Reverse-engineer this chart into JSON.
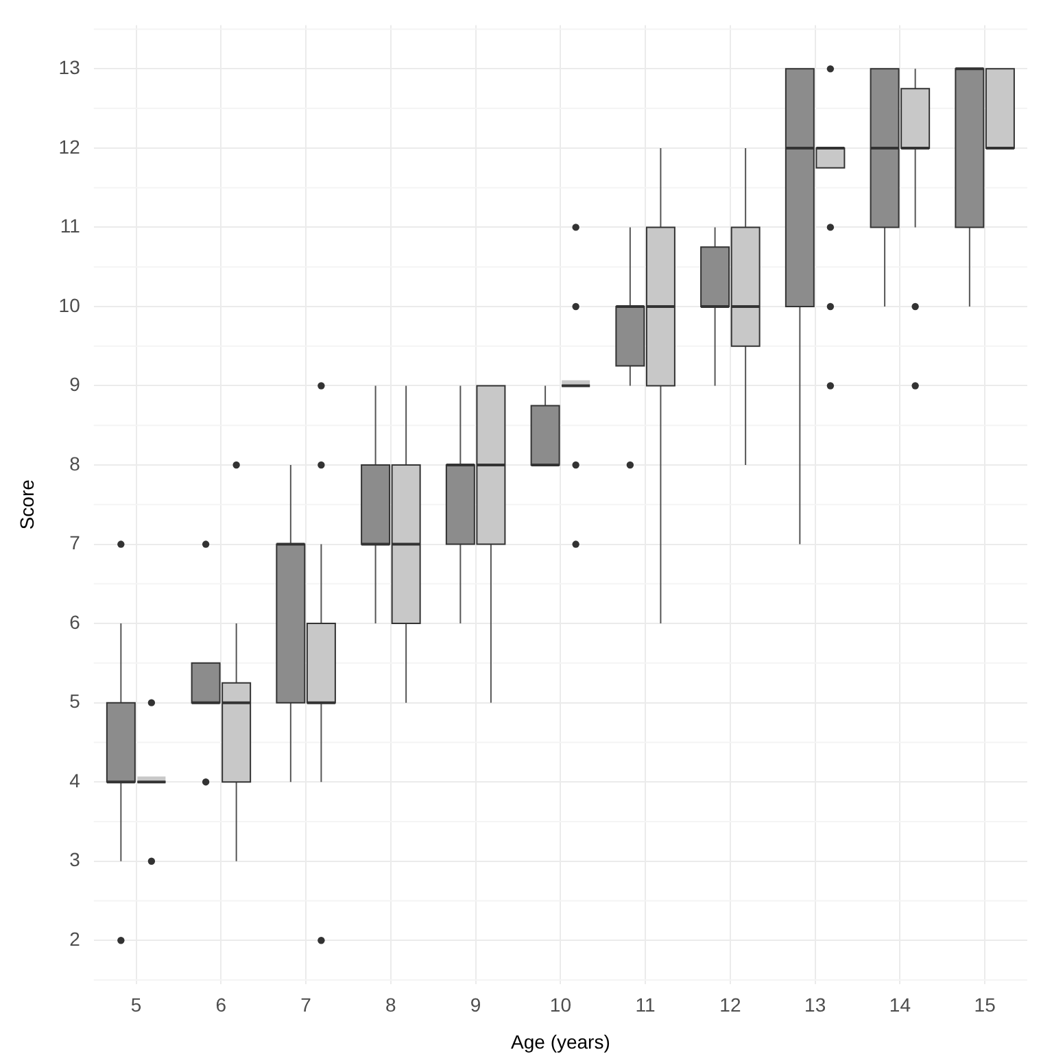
{
  "chart_data": {
    "type": "box",
    "xlabel": "Age (years)",
    "ylabel": "Score",
    "categories": [
      "5",
      "6",
      "7",
      "8",
      "9",
      "10",
      "11",
      "12",
      "13",
      "14",
      "15"
    ],
    "ylim": [
      1.45,
      13.55
    ],
    "yticks": [
      2,
      3,
      4,
      5,
      6,
      7,
      8,
      9,
      10,
      11,
      12,
      13
    ],
    "grid": true,
    "series": [
      {
        "color": "#8c8c8c",
        "boxes": [
          {
            "low": 3,
            "q1": 4,
            "median": 4,
            "q3": 5,
            "high": 6,
            "outliers": [
              2,
              7
            ]
          },
          {
            "low": 5,
            "q1": 5,
            "median": 5,
            "q3": 5.5,
            "high": 5.5,
            "outliers": [
              4,
              7
            ]
          },
          {
            "low": 4,
            "q1": 5,
            "median": 7,
            "q3": 7,
            "high": 8
          },
          {
            "low": 6,
            "q1": 7,
            "median": 7,
            "q3": 8,
            "high": 9
          },
          {
            "low": 6,
            "q1": 7,
            "median": 8,
            "q3": 8,
            "high": 9
          },
          {
            "low": 8,
            "q1": 8,
            "median": 8,
            "q3": 8.75,
            "high": 9
          },
          {
            "low": 9,
            "q1": 9.25,
            "median": 10,
            "q3": 10,
            "high": 11,
            "outliers": [
              8
            ]
          },
          {
            "low": 9,
            "q1": 10,
            "median": 10,
            "q3": 10.75,
            "high": 11
          },
          {
            "low": 7,
            "q1": 10,
            "median": 12,
            "q3": 13,
            "high": 13
          },
          {
            "low": 10,
            "q1": 11,
            "median": 12,
            "q3": 13,
            "high": 13
          },
          {
            "low": 10,
            "q1": 11,
            "median": 13,
            "q3": 13,
            "high": 13
          }
        ]
      },
      {
        "color": "#c8c8c8",
        "boxes": [
          {
            "low": 4,
            "q1": 4,
            "median": 4,
            "q3": 4,
            "high": 4,
            "outliers": [
              3,
              5
            ]
          },
          {
            "low": 3,
            "q1": 4,
            "median": 5,
            "q3": 5.25,
            "high": 6,
            "outliers": [
              8
            ]
          },
          {
            "low": 4,
            "q1": 5,
            "median": 5,
            "q3": 6,
            "high": 7,
            "outliers": [
              2,
              8,
              9
            ]
          },
          {
            "low": 5,
            "q1": 6,
            "median": 7,
            "q3": 8,
            "high": 9
          },
          {
            "low": 5,
            "q1": 7,
            "median": 8,
            "q3": 9,
            "high": 9
          },
          {
            "low": 9,
            "q1": 9,
            "median": 9,
            "q3": 9,
            "high": 9,
            "outliers": [
              7,
              8,
              10,
              11
            ]
          },
          {
            "low": 6,
            "q1": 9,
            "median": 10,
            "q3": 11,
            "high": 12
          },
          {
            "low": 8,
            "q1": 9.5,
            "median": 10,
            "q3": 11,
            "high": 12
          },
          {
            "low": 11.75,
            "q1": 11.75,
            "median": 12,
            "q3": 12,
            "high": 12,
            "outliers": [
              9,
              10,
              11,
              13
            ]
          },
          {
            "low": 11,
            "q1": 12,
            "median": 12,
            "q3": 12.75,
            "high": 13,
            "outliers": [
              9,
              10
            ]
          },
          {
            "low": 12,
            "q1": 12,
            "median": 12,
            "q3": 13,
            "high": 13
          }
        ]
      }
    ]
  }
}
